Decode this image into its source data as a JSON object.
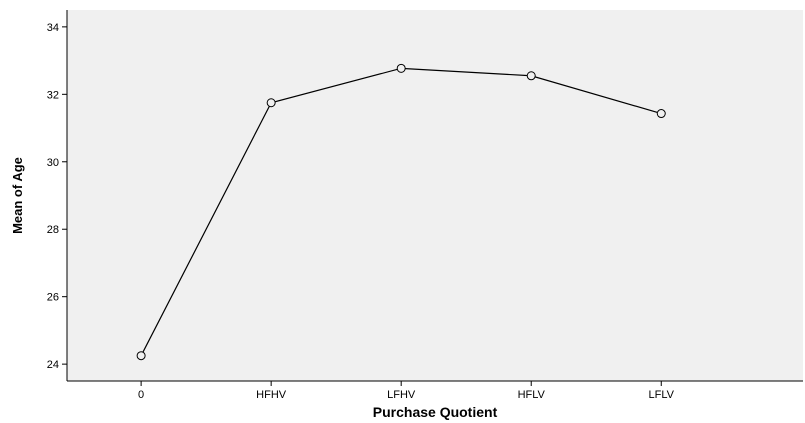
{
  "chart_data": {
    "type": "line",
    "title": "",
    "xlabel": "Purchase Quotient",
    "ylabel": "Mean of Age",
    "categories": [
      "0",
      "HFHV",
      "LFHV",
      "HFLV",
      "LFLV"
    ],
    "series": [
      {
        "values": [
          24.25,
          31.75,
          32.77,
          32.55,
          31.43
        ]
      }
    ],
    "ylim": [
      23.5,
      34.5
    ],
    "yticks": [
      24,
      26,
      28,
      30,
      32,
      34
    ],
    "grid": false,
    "legend": "none",
    "colors": {
      "plot_background": "#f0f0f0",
      "line": "#000000",
      "axis": "#000000"
    }
  }
}
